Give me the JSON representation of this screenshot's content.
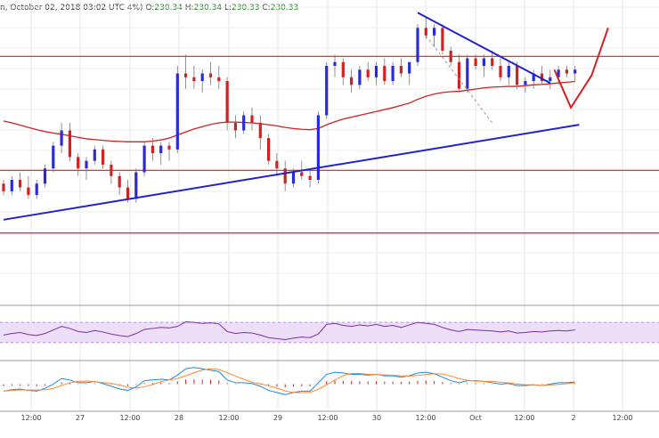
{
  "header": {
    "symbol_text": "n, October 02, 2018 03:02 UTC",
    "change_text": "4%)",
    "o_label": "O:",
    "o_value": "230.34",
    "h_label": "H:",
    "h_value": "230.34",
    "l_label": "L:",
    "l_value": "230.33",
    "c_label": "C:",
    "c_value": "230.33"
  },
  "colors": {
    "up": "#2b2bd6",
    "down": "#d42020",
    "ma": "#d42020",
    "trendline": "#2222cc",
    "hline": "#d42020",
    "rsi_band": "#ecdff7",
    "rsi_line": "#7b2fa8",
    "macd_a": "#1e88e5",
    "macd_b": "#ff8a30",
    "macd_hist": "#d42020"
  },
  "chart_data": {
    "type": "candlestick",
    "x_ticks": [
      "12:00",
      "27",
      "12:00",
      "28",
      "12:00",
      "29",
      "12:00",
      "30",
      "12:00",
      "Oct",
      "12:00",
      "2",
      "12:00"
    ],
    "price_ylim": [
      195,
      270
    ],
    "candles": [
      [
        224,
        225,
        221,
        222
      ],
      [
        222,
        226,
        221,
        225
      ],
      [
        225,
        227,
        222,
        223
      ],
      [
        223,
        226,
        220,
        221
      ],
      [
        221,
        225,
        220,
        224
      ],
      [
        224,
        229,
        223,
        228
      ],
      [
        228,
        235,
        227,
        234
      ],
      [
        234,
        240,
        232,
        238
      ],
      [
        238,
        240,
        230,
        231
      ],
      [
        231,
        232,
        226,
        228
      ],
      [
        228,
        231,
        225,
        230
      ],
      [
        230,
        234,
        229,
        233
      ],
      [
        233,
        234,
        228,
        229
      ],
      [
        229,
        230,
        224,
        226
      ],
      [
        226,
        227,
        221,
        223
      ],
      [
        223,
        225,
        219,
        220
      ],
      [
        220,
        228,
        219,
        227
      ],
      [
        227,
        235,
        226,
        234
      ],
      [
        234,
        236,
        230,
        232
      ],
      [
        232,
        235,
        229,
        234
      ],
      [
        234,
        235,
        230,
        233
      ],
      [
        233,
        255,
        232,
        253
      ],
      [
        253,
        258,
        249,
        252
      ],
      [
        252,
        255,
        249,
        251
      ],
      [
        251,
        254,
        248,
        253
      ],
      [
        253,
        256,
        250,
        252
      ],
      [
        252,
        255,
        249,
        251
      ],
      [
        251,
        252,
        238,
        240
      ],
      [
        240,
        242,
        236,
        238
      ],
      [
        238,
        243,
        237,
        242
      ],
      [
        242,
        244,
        238,
        240
      ],
      [
        240,
        242,
        233,
        236
      ],
      [
        236,
        237,
        229,
        230
      ],
      [
        230,
        232,
        226,
        228
      ],
      [
        228,
        230,
        222,
        224
      ],
      [
        224,
        228,
        223,
        227
      ],
      [
        227,
        230,
        225,
        226
      ],
      [
        226,
        228,
        223,
        225
      ],
      [
        225,
        243,
        224,
        242
      ],
      [
        242,
        256,
        241,
        255
      ],
      [
        255,
        258,
        252,
        256
      ],
      [
        256,
        257,
        250,
        252
      ],
      [
        252,
        254,
        248,
        250
      ],
      [
        250,
        255,
        249,
        254
      ],
      [
        254,
        256,
        251,
        252
      ],
      [
        252,
        256,
        250,
        255
      ],
      [
        255,
        257,
        250,
        251
      ],
      [
        251,
        256,
        250,
        255
      ],
      [
        255,
        257,
        252,
        253
      ],
      [
        253,
        256,
        250,
        256
      ],
      [
        256,
        266,
        255,
        265
      ],
      [
        265,
        268,
        262,
        263
      ],
      [
        263,
        266,
        260,
        265
      ],
      [
        265,
        266,
        258,
        259
      ],
      [
        259,
        260,
        255,
        256
      ],
      [
        256,
        258,
        248,
        249
      ],
      [
        249,
        258,
        248,
        257
      ],
      [
        257,
        258,
        254,
        255
      ],
      [
        255,
        258,
        252,
        257
      ],
      [
        257,
        259,
        254,
        255
      ],
      [
        255,
        257,
        251,
        252
      ],
      [
        252,
        256,
        250,
        255
      ],
      [
        255,
        256,
        249,
        250
      ],
      [
        250,
        252,
        248,
        251
      ],
      [
        251,
        254,
        249,
        253
      ],
      [
        253,
        255,
        250,
        251
      ],
      [
        251,
        254,
        249,
        252
      ],
      [
        252,
        255,
        250,
        254
      ],
      [
        254,
        255,
        252,
        253
      ],
      [
        253,
        255,
        251,
        254
      ]
    ],
    "ma_values": [
      240.5,
      240,
      239.4,
      238.8,
      238.2,
      237.7,
      237.3,
      237,
      236.6,
      236.2,
      235.8,
      235.6,
      235.4,
      235.2,
      235.1,
      235,
      235,
      235,
      235.2,
      235.5,
      236,
      236.8,
      237.6,
      238.4,
      239,
      239.6,
      240,
      240.2,
      240.2,
      240.1,
      240,
      239.8,
      239.5,
      239.2,
      238.8,
      238.5,
      238.3,
      238.2,
      238.5,
      239.5,
      240.3,
      241,
      241.5,
      242,
      242.5,
      243,
      243.5,
      244,
      244.6,
      245.2,
      246.2,
      247,
      247.6,
      248,
      248.2,
      248.3,
      248.6,
      248.9,
      249.2,
      249.4,
      249.5,
      249.6,
      249.6,
      249.8,
      250,
      250.1,
      250.3,
      250.5,
      250.7,
      250.9
    ],
    "horizontal_levels": [
      257.5,
      227.5,
      211
    ],
    "trendlines": [
      {
        "from": [
          0,
          214.5
        ],
        "to": [
          69.5,
          239.5
        ]
      },
      {
        "from": [
          50,
          269
        ],
        "to": [
          66,
          250.5
        ]
      }
    ],
    "dashed_line": {
      "from": [
        51,
        263
      ],
      "to": [
        59,
        240
      ]
    },
    "projection": [
      [
        66.5,
        254
      ],
      [
        68.5,
        244
      ],
      [
        71,
        252.5
      ],
      [
        73,
        265
      ]
    ],
    "rsi": [
      45,
      48,
      50,
      46,
      44,
      48,
      55,
      62,
      58,
      52,
      50,
      54,
      51,
      47,
      44,
      42,
      48,
      56,
      58,
      60,
      59,
      62,
      71,
      70,
      68,
      69,
      67,
      52,
      48,
      50,
      49,
      45,
      40,
      38,
      36,
      39,
      41,
      40,
      47,
      66,
      68,
      64,
      62,
      65,
      63,
      66,
      62,
      64,
      60,
      65,
      70,
      68,
      66,
      60,
      55,
      52,
      56,
      55,
      54,
      53,
      51,
      53,
      49,
      50,
      52,
      51,
      53,
      54,
      53,
      55
    ],
    "rsi_ylim": [
      0,
      100
    ],
    "macd": [
      -1,
      -0.8,
      -0.7,
      -0.9,
      -1,
      -0.6,
      0,
      0.8,
      0.6,
      0.2,
      0.2,
      0.4,
      0.1,
      -0.3,
      -0.7,
      -0.9,
      -0.4,
      0.5,
      0.6,
      0.7,
      0.6,
      1.3,
      2.2,
      2.4,
      2.2,
      2,
      1.8,
      0.6,
      0.2,
      0.2,
      0.1,
      -0.3,
      -0.9,
      -1.2,
      -1.5,
      -1.2,
      -1,
      -1,
      0.2,
      1.4,
      1.7,
      1.6,
      1.4,
      1.4,
      1.3,
      1.4,
      1.2,
      1.2,
      1,
      1.2,
      1.6,
      1.7,
      1.5,
      1,
      0.5,
      0.2,
      0.5,
      0.5,
      0.4,
      0.2,
      0,
      0.1,
      -0.2,
      -0.2,
      -0.1,
      -0.2,
      0,
      0.2,
      0.2,
      0.3
    ],
    "macd_ylim": [
      -3,
      3
    ]
  }
}
